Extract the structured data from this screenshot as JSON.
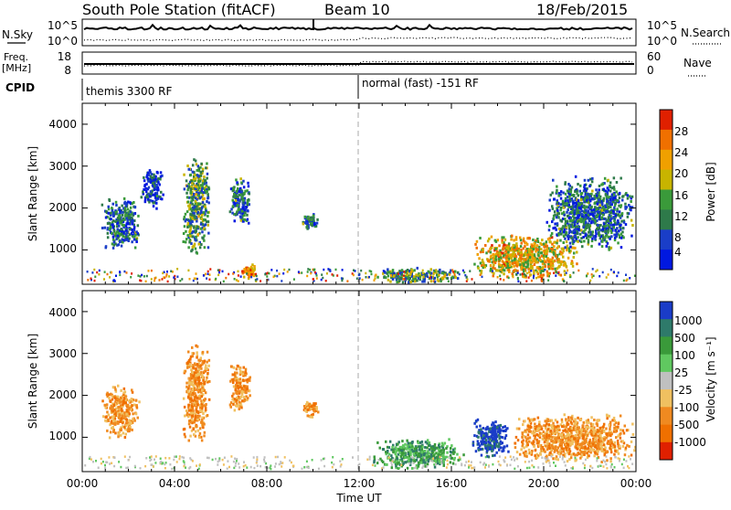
{
  "header": {
    "station": "South Pole Station (fitACF)",
    "beam": "Beam 10",
    "date": "18/Feb/2015"
  },
  "panels": {
    "nsky": {
      "label": "N.Sky",
      "right_label": "N.Search",
      "left_ticks": [
        "10^5",
        "10^0"
      ],
      "right_ticks": [
        "10^5",
        "10^0"
      ]
    },
    "freq": {
      "label_line1": "Freq.",
      "label_line2": "[MHz]",
      "right_label": "Nave",
      "left_ticks": [
        "18",
        "8"
      ],
      "right_ticks": [
        "60",
        "0"
      ]
    },
    "cpid": {
      "label": "CPID",
      "program_1": "themis 3300 RF",
      "program_2": "normal (fast) -151 RF"
    },
    "power": {
      "ylabel": "Slant Range [km]",
      "y_ticks": [
        "4000",
        "3000",
        "2000",
        "1000"
      ],
      "colorbar_label": "Power [dB]",
      "colorbar_ticks": [
        "28",
        "24",
        "20",
        "16",
        "12",
        "8",
        "4"
      ],
      "colors": [
        "#0018e0",
        "#1a3ec8",
        "#2e7a4a",
        "#3a9a3a",
        "#c8b400",
        "#f0a000",
        "#f07000",
        "#e02000"
      ]
    },
    "velocity": {
      "ylabel": "Slant Range [km]",
      "y_ticks": [
        "4000",
        "3000",
        "2000",
        "1000"
      ],
      "colorbar_label": "Velocity [m s⁻¹]",
      "colorbar_ticks": [
        "1000",
        "500",
        "100",
        "25",
        "-25",
        "-100",
        "-500",
        "-1000"
      ],
      "colors": [
        "#1a3cc8",
        "#2e7a6a",
        "#3a9a3a",
        "#60c860",
        "#c0c0c0",
        "#f0c060",
        "#f08a20",
        "#f07000",
        "#e02000"
      ]
    }
  },
  "x_axis": {
    "label": "Time UT",
    "ticks": [
      "00:00",
      "04:00",
      "08:00",
      "12:00",
      "16:00",
      "20:00",
      "00:00"
    ]
  },
  "chart_data": [
    {
      "type": "heatmap",
      "title": "Power",
      "xlabel": "Time UT",
      "ylabel": "Slant Range [km]",
      "x_range_hours": [
        0,
        24
      ],
      "ylim_km": [
        180,
        4500
      ],
      "colorbar": {
        "label": "Power [dB]",
        "range": [
          0,
          30
        ],
        "ticks": [
          4,
          8,
          12,
          16,
          20,
          24,
          28
        ]
      },
      "scatter_regions": [
        {
          "t_hours": [
            0.8,
            2.5
          ],
          "range_km": [
            1000,
            2300
          ],
          "mean_power_db": 8
        },
        {
          "t_hours": [
            2.5,
            3.5
          ],
          "range_km": [
            2000,
            3000
          ],
          "mean_power_db": 6
        },
        {
          "t_hours": [
            4.3,
            5.5
          ],
          "range_km": [
            900,
            3300
          ],
          "mean_power_db": 12
        },
        {
          "t_hours": [
            6.3,
            7.3
          ],
          "range_km": [
            1600,
            2800
          ],
          "mean_power_db": 10
        },
        {
          "t_hours": [
            6.8,
            7.5
          ],
          "range_km": [
            350,
            700
          ],
          "mean_power_db": 26
        },
        {
          "t_hours": [
            9.5,
            10.2
          ],
          "range_km": [
            1500,
            1900
          ],
          "mean_power_db": 8
        },
        {
          "t_hours": [
            12.5,
            16.5
          ],
          "range_km": [
            250,
            600
          ],
          "mean_power_db": 12
        },
        {
          "t_hours": [
            16.8,
            21.5
          ],
          "range_km": [
            300,
            1400
          ],
          "mean_power_db": 22
        },
        {
          "t_hours": [
            20.0,
            24.0
          ],
          "range_km": [
            1000,
            2800
          ],
          "mean_power_db": 10
        }
      ]
    },
    {
      "type": "heatmap",
      "title": "Velocity",
      "xlabel": "Time UT",
      "ylabel": "Slant Range [km]",
      "x_range_hours": [
        0,
        24
      ],
      "ylim_km": [
        180,
        4500
      ],
      "colorbar": {
        "label": "Velocity [m s⁻¹]",
        "range": [
          -1000,
          1000
        ],
        "ticks": [
          1000,
          500,
          100,
          25,
          -25,
          -100,
          -500,
          -1000
        ]
      },
      "scatter_regions": [
        {
          "t_hours": [
            0.8,
            2.5
          ],
          "range_km": [
            1000,
            2300
          ],
          "mean_velocity_ms": -300
        },
        {
          "t_hours": [
            4.3,
            5.5
          ],
          "range_km": [
            900,
            3300
          ],
          "mean_velocity_ms": -250
        },
        {
          "t_hours": [
            6.3,
            7.3
          ],
          "range_km": [
            1600,
            2800
          ],
          "mean_velocity_ms": -200
        },
        {
          "t_hours": [
            9.5,
            10.2
          ],
          "range_km": [
            1500,
            1900
          ],
          "mean_velocity_ms": -300
        },
        {
          "t_hours": [
            12.5,
            16.5
          ],
          "range_km": [
            250,
            1000
          ],
          "mean_velocity_ms": 150
        },
        {
          "t_hours": [
            16.8,
            18.5
          ],
          "range_km": [
            500,
            1500
          ],
          "mean_velocity_ms": 400
        },
        {
          "t_hours": [
            18.5,
            24.0
          ],
          "range_km": [
            400,
            1600
          ],
          "mean_velocity_ms": -300
        }
      ]
    }
  ]
}
